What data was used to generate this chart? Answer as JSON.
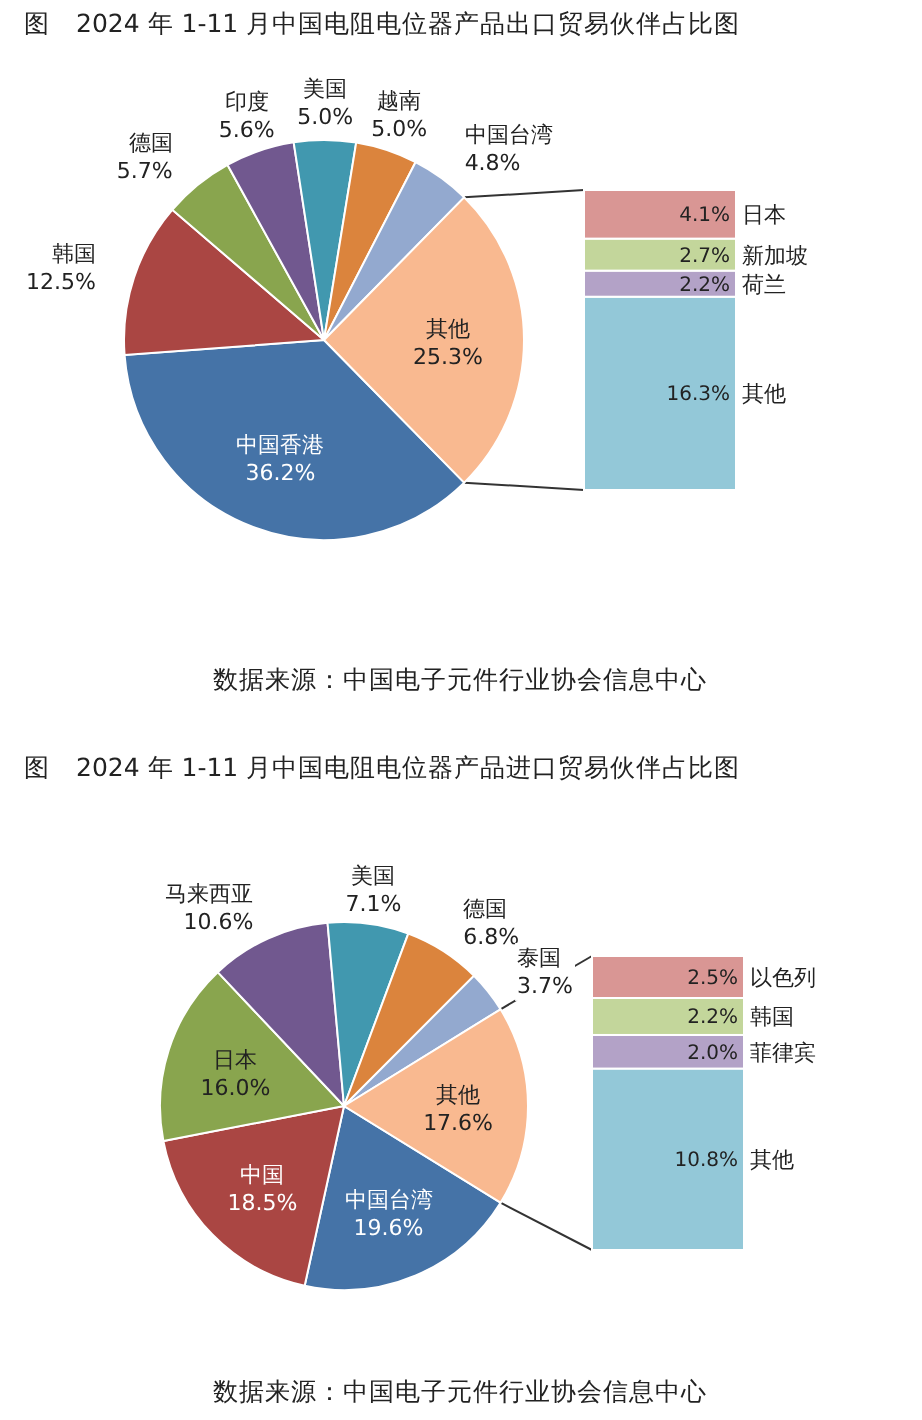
{
  "chart_data": [
    {
      "type": "pie",
      "title": "图　2024 年 1-11 月中国电阻电位器产品出口贸易伙伴占比图",
      "categories": [
        "中国香港",
        "韩国",
        "德国",
        "印度",
        "美国",
        "越南",
        "中国台湾",
        "其他"
      ],
      "values": [
        36.2,
        12.5,
        5.7,
        5.6,
        5.0,
        5.0,
        4.8,
        25.3
      ],
      "value_labels": [
        "36.2%",
        "12.5%",
        "5.7%",
        "5.6%",
        "5.0%",
        "5.0%",
        "4.8%",
        "25.3%"
      ],
      "colors": [
        "#4573a7",
        "#aa4643",
        "#89a54e",
        "#71588f",
        "#4198af",
        "#db843d",
        "#93a9cf",
        "#f9b990"
      ],
      "annotations": [
        "数据来源：中国电子元件行业协会信息中心"
      ]
    },
    {
      "type": "bar",
      "stacked": true,
      "categories": [
        null
      ],
      "series": [
        {
          "name": "其他",
          "color": "#93c8d8",
          "values": [
            16.3
          ],
          "value_labels": [
            "16.3%"
          ]
        },
        {
          "name": "荷兰",
          "color": "#b3a2c7",
          "values": [
            2.2
          ],
          "value_labels": [
            "2.2%"
          ]
        },
        {
          "name": "新加坡",
          "color": "#c3d69b",
          "values": [
            2.7
          ],
          "value_labels": [
            "2.7%"
          ]
        },
        {
          "name": "日本",
          "color": "#d99694",
          "values": [
            4.1
          ],
          "value_labels": [
            "4.1%"
          ]
        }
      ]
    },
    {
      "type": "pie",
      "title": "图　2024 年 1-11 月中国电阻电位器产品进口贸易伙伴占比图",
      "categories": [
        "中国台湾",
        "中国",
        "日本",
        "马来西亚",
        "美国",
        "德国",
        "泰国",
        "其他"
      ],
      "values": [
        19.6,
        18.5,
        16.0,
        10.6,
        7.1,
        6.8,
        3.7,
        17.6
      ],
      "value_labels": [
        "19.6%",
        "18.5%",
        "16.0%",
        "10.6%",
        "7.1%",
        "6.8%",
        "3.7%",
        "17.6%"
      ],
      "colors": [
        "#4573a7",
        "#aa4643",
        "#89a54e",
        "#71588f",
        "#4198af",
        "#db843d",
        "#93a9cf",
        "#f9b990"
      ],
      "annotations": [
        "数据来源：中国电子元件行业协会信息中心"
      ]
    },
    {
      "type": "bar",
      "stacked": true,
      "categories": [
        null
      ],
      "series": [
        {
          "name": "其他",
          "color": "#93c8d8",
          "values": [
            10.8
          ],
          "value_labels": [
            "10.8%"
          ]
        },
        {
          "name": "菲律宾",
          "color": "#b3a2c7",
          "values": [
            2.0
          ],
          "value_labels": [
            "2.0%"
          ]
        },
        {
          "name": "韩国",
          "color": "#c3d69b",
          "values": [
            2.2
          ],
          "value_labels": [
            "2.2%"
          ]
        },
        {
          "name": "以色列",
          "color": "#d99694",
          "values": [
            2.5
          ],
          "value_labels": [
            "2.5%"
          ]
        }
      ]
    }
  ]
}
